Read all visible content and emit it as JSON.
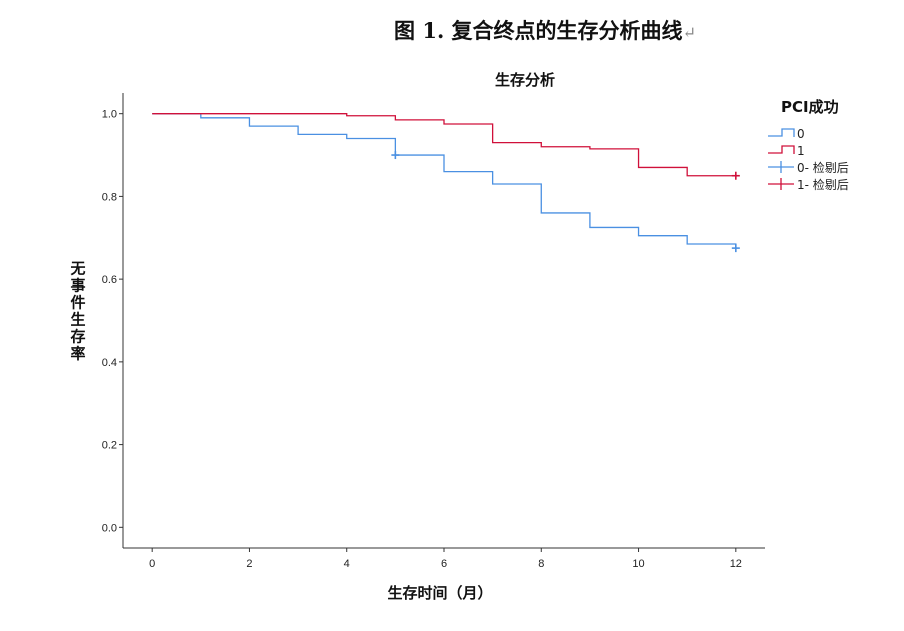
{
  "figure_title": "图 1. 复合终点的生存分析曲线",
  "return_mark": "↵",
  "chart_data": {
    "type": "line",
    "step": true,
    "title": "生存分析",
    "xlabel": "生存时间（月）",
    "ylabel": "无事件生存率",
    "xlim": [
      -0.6,
      12.6
    ],
    "ylim": [
      -0.05,
      1.05
    ],
    "x_ticks": [
      0,
      2,
      4,
      6,
      8,
      10,
      12
    ],
    "x_tick_labels": [
      "0",
      "2",
      "4",
      "6",
      "8",
      "10",
      "12"
    ],
    "y_ticks": [
      0.0,
      0.2,
      0.4,
      0.6,
      0.8,
      1.0
    ],
    "y_tick_labels": [
      "0.0",
      "0.2",
      "0.4",
      "0.6",
      "0.8",
      "1.0"
    ],
    "legend_title": "PCI成功",
    "legend_position": "top-right",
    "series": [
      {
        "name": "0",
        "color": "#4a90e2",
        "x": [
          0,
          1,
          2,
          3,
          4,
          5,
          6,
          7,
          8,
          9,
          10,
          11,
          12
        ],
        "y": [
          1.0,
          0.99,
          0.97,
          0.95,
          0.94,
          0.9,
          0.86,
          0.83,
          0.76,
          0.725,
          0.705,
          0.685,
          0.675
        ],
        "censored": [
          {
            "x": 5,
            "y": 0.9
          },
          {
            "x": 12,
            "y": 0.675
          }
        ]
      },
      {
        "name": "1",
        "color": "#d0103a",
        "x": [
          0,
          4,
          5,
          6,
          7,
          8,
          9,
          10,
          11,
          12
        ],
        "y": [
          1.0,
          0.995,
          0.985,
          0.975,
          0.93,
          0.92,
          0.915,
          0.87,
          0.85,
          0.85
        ],
        "censored": [
          {
            "x": 12,
            "y": 0.85
          }
        ]
      }
    ],
    "legend_entries": [
      {
        "label": "0",
        "kind": "line",
        "color": "#4a90e2"
      },
      {
        "label": "1",
        "kind": "line",
        "color": "#d0103a"
      },
      {
        "label": "0- 检剔后",
        "kind": "censor",
        "color": "#4a90e2"
      },
      {
        "label": "1- 检剔后",
        "kind": "censor",
        "color": "#d0103a"
      }
    ]
  }
}
